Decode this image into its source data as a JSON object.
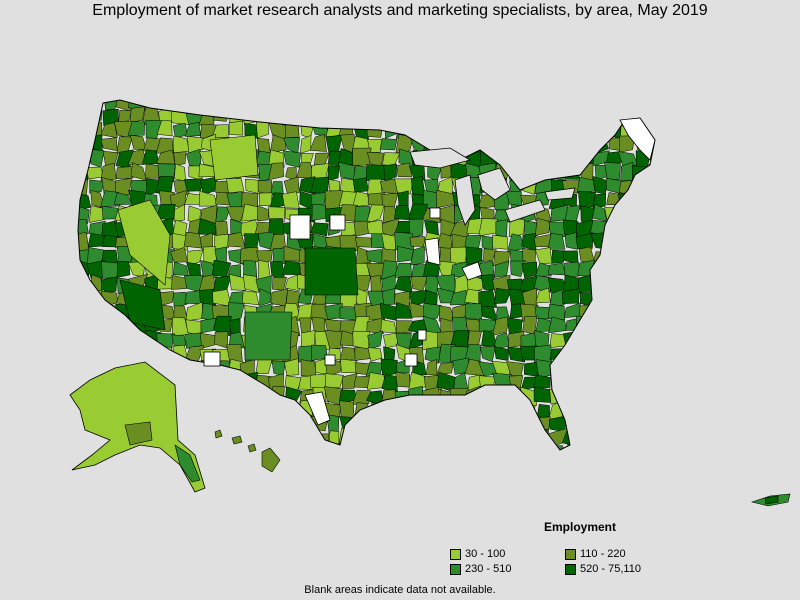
{
  "title": "Employment of market research analysts and marketing specialists, by area, May 2019",
  "legend": {
    "title": "Employment",
    "items": [
      {
        "label": "30 - 100",
        "color": "#99cc33"
      },
      {
        "label": "110 - 220",
        "color": "#6b8e23"
      },
      {
        "label": "230 - 510",
        "color": "#2e8b2e"
      },
      {
        "label": "520 - 75,110",
        "color": "#006400"
      }
    ]
  },
  "footnote": "Blank areas indicate data not available.",
  "colors": {
    "background": "#e0e0e0",
    "border": "#000000",
    "no_data": "#ffffff"
  }
}
